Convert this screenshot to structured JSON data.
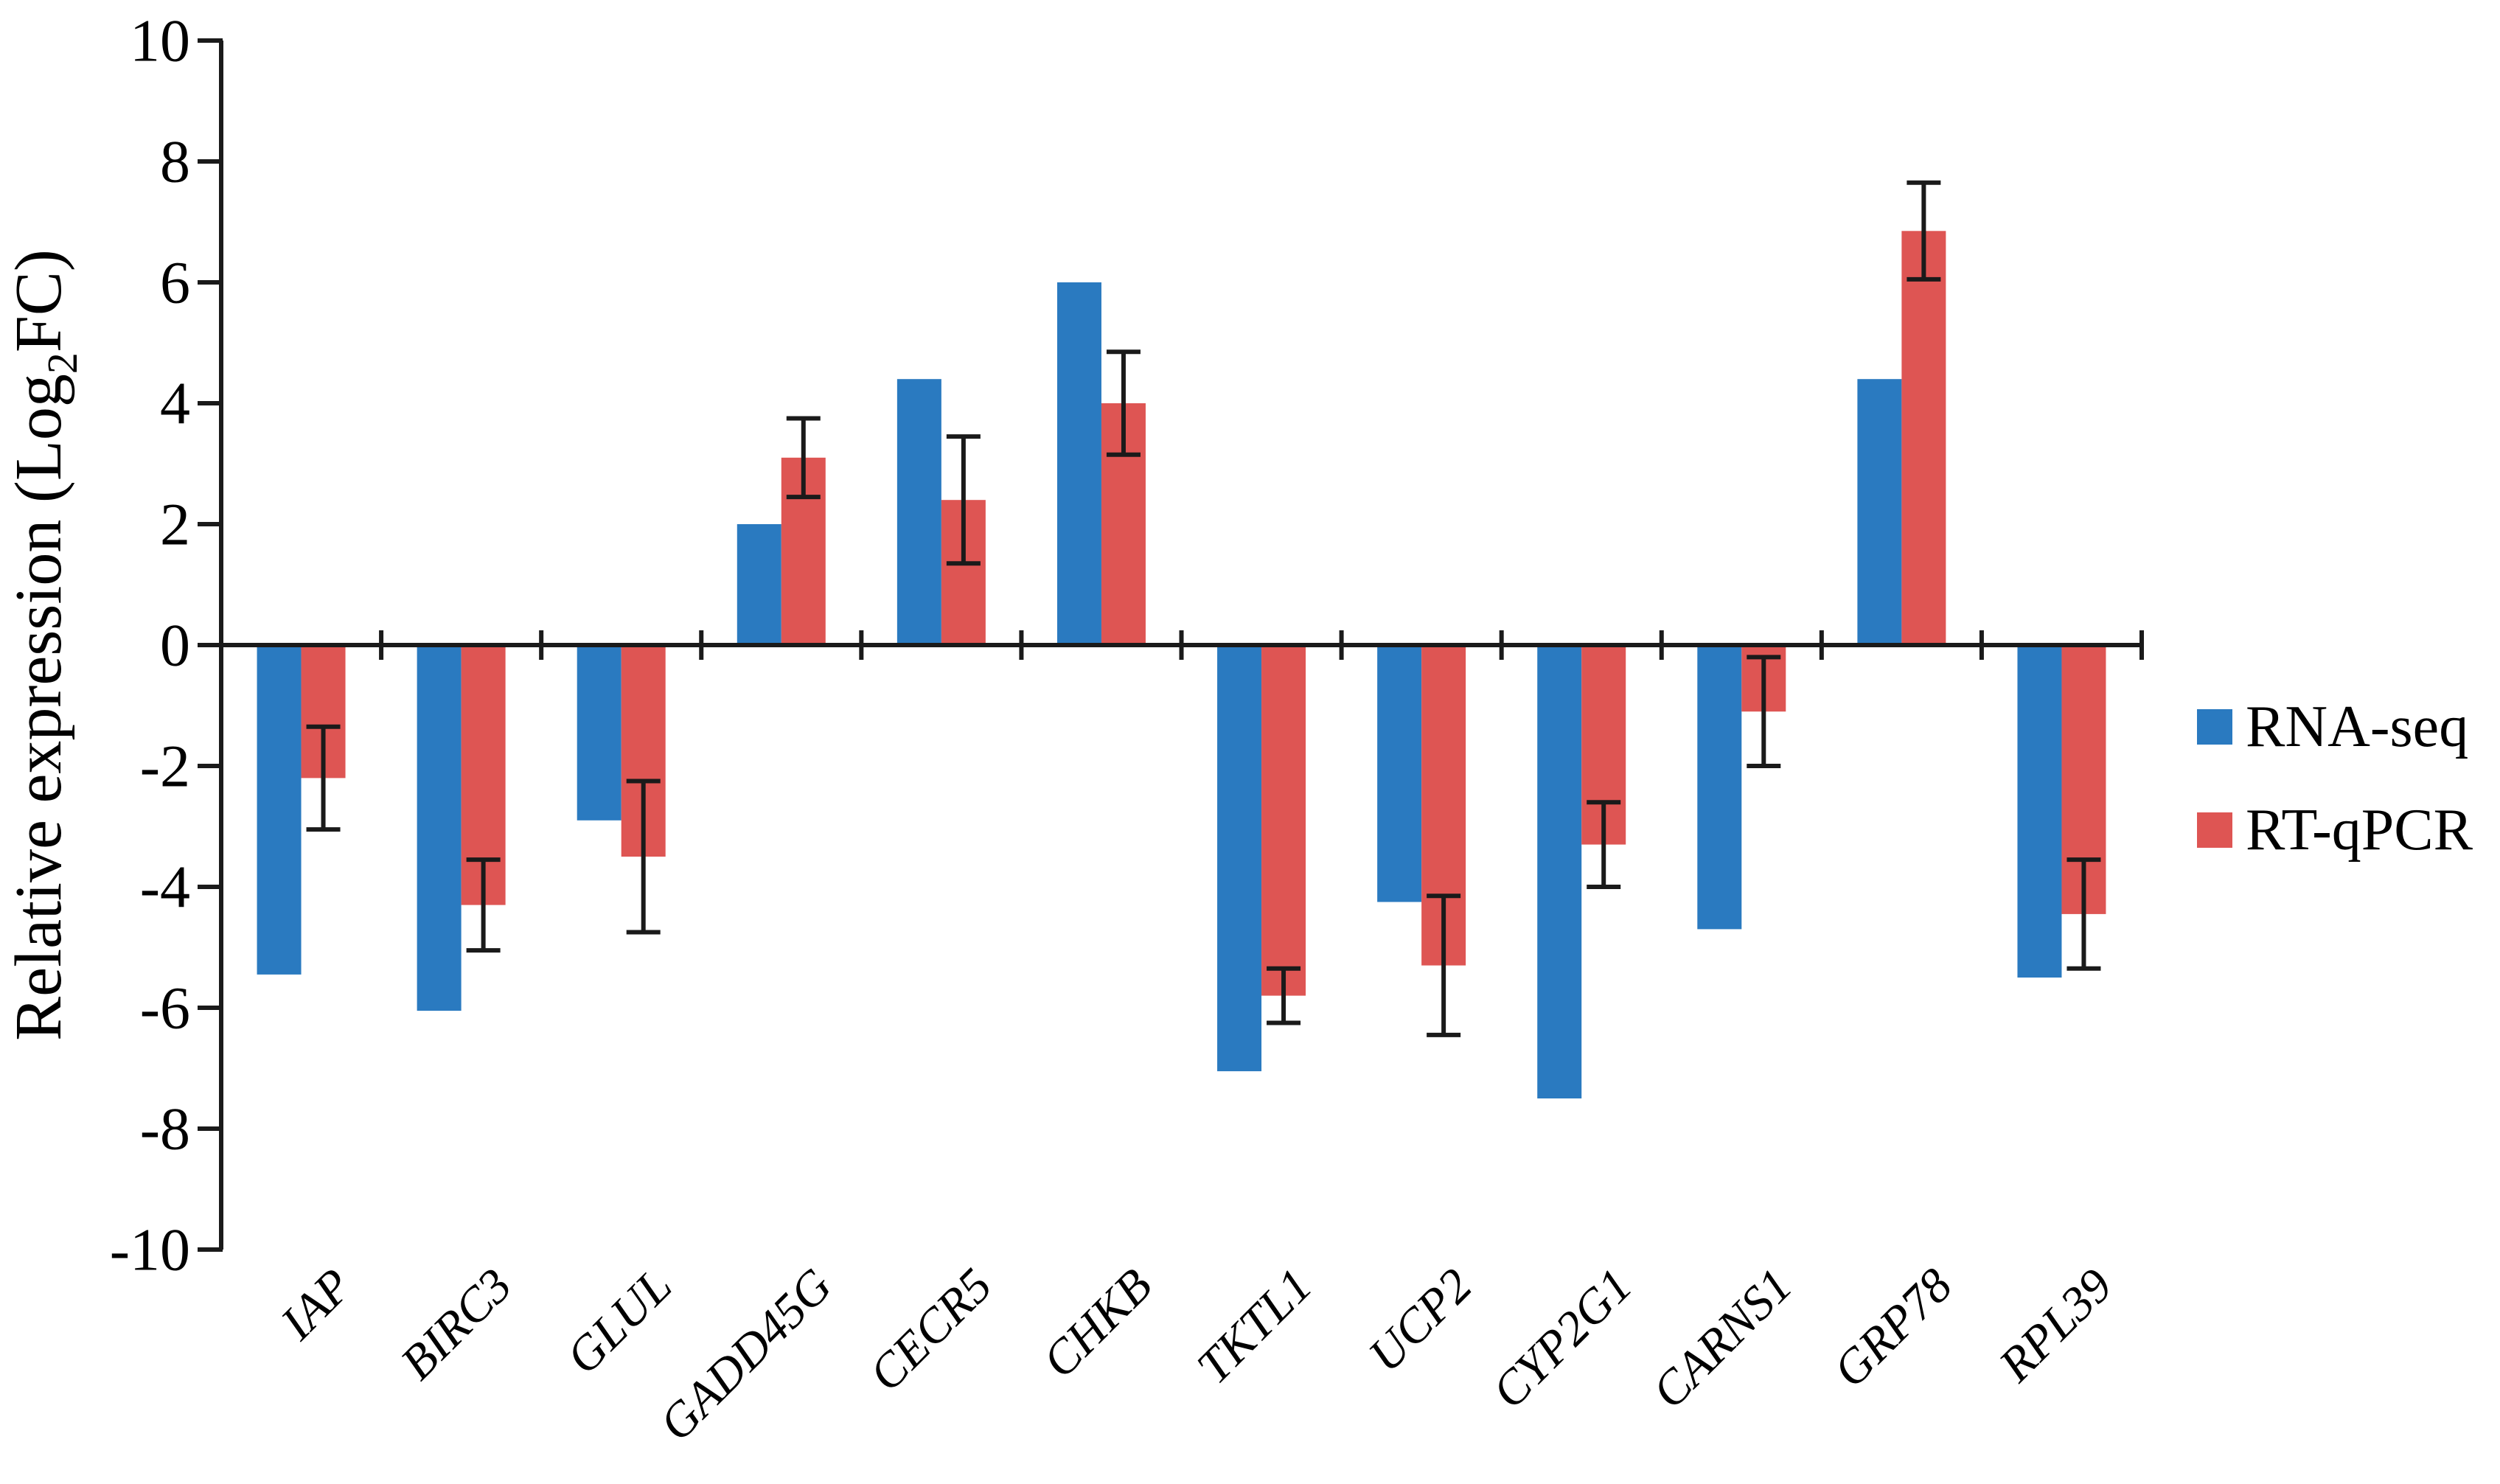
{
  "figure": {
    "ylabel_prefix": "Relative expression (Log",
    "ylabel_sub": "2",
    "ylabel_suffix": "FC)"
  },
  "chart_data": {
    "type": "bar",
    "title": "",
    "xlabel": "",
    "ylabel": "Relative expression (Log2FC)",
    "categories": [
      "IAP",
      "BIRC3",
      "GLUL",
      "GADD45G",
      "CECR5",
      "CHKB",
      "TKTL1",
      "UCP2",
      "CYP2G1",
      "CARNS1",
      "GRP78",
      "RPL39"
    ],
    "series": [
      {
        "name": "RNA-seq",
        "color": "#2A7AC0",
        "values": [
          -5.45,
          -6.05,
          -2.9,
          2.0,
          4.4,
          6.0,
          -7.05,
          -4.25,
          -7.5,
          -4.7,
          4.4,
          -5.5
        ]
      },
      {
        "name": "RT-qPCR",
        "color": "#DE5553",
        "values": [
          -2.2,
          -4.3,
          -3.5,
          3.1,
          2.4,
          4.0,
          -5.8,
          -5.3,
          -3.3,
          -1.1,
          6.85,
          -4.45
        ],
        "errors": [
          0.85,
          0.75,
          1.25,
          0.65,
          1.05,
          0.85,
          0.45,
          1.15,
          0.7,
          0.9,
          0.8,
          0.9
        ]
      }
    ],
    "ylim": [
      -10,
      10
    ],
    "ytick_step": 2,
    "yticks": [
      10,
      8,
      6,
      4,
      2,
      0,
      -2,
      -4,
      -6,
      -8,
      -10
    ],
    "grid": false,
    "legend_position": "right",
    "axis_color": "#1a1a1a",
    "error_bar_color": "#1a1a1a",
    "background_color": "#ffffff"
  }
}
